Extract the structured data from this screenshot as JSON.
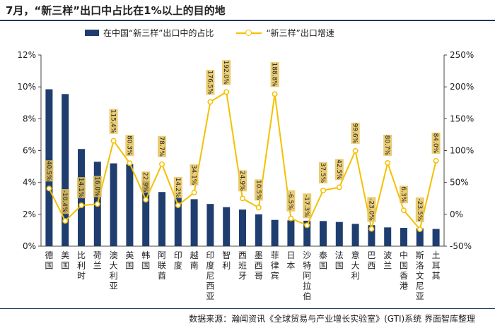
{
  "title": "7月，“新三样”出口中占比在1%以上的目的地",
  "source": "数据来源：瀚闻资讯《全球贸易与产业增长实验室》(GTI)系统   界面智库整理",
  "chart_data": {
    "type": "bar+line",
    "categories": [
      "德国",
      "美国",
      "比利时",
      "荷兰",
      "澳大利亚",
      "英国",
      "韩国",
      "阿联酋",
      "印度",
      "越南",
      "印度尼西亚",
      "智利",
      "西班牙",
      "墨西哥",
      "菲律宾",
      "日本",
      "沙特阿拉伯",
      "泰国",
      "法国",
      "意大利",
      "巴西",
      "波兰",
      "中国香港",
      "斯洛文尼亚",
      "土耳其"
    ],
    "series": [
      {
        "name": "在中国“新三样”出口中的占比",
        "type": "bar",
        "axis": "left",
        "color": "#1f3e6f",
        "values": [
          9.85,
          9.55,
          6.1,
          5.3,
          5.2,
          5.15,
          4.1,
          3.4,
          3.1,
          2.95,
          2.65,
          2.45,
          2.3,
          2.0,
          1.65,
          1.62,
          1.6,
          1.58,
          1.52,
          1.4,
          1.32,
          1.18,
          1.15,
          1.12,
          1.08
        ]
      },
      {
        "name": "“新三样”出口增速",
        "type": "line",
        "axis": "right",
        "color": "#f5c000",
        "values": [
          40.5,
          -10.4,
          14.1,
          16.0,
          115.4,
          80.3,
          22.9,
          78.7,
          14.2,
          34.1,
          176.5,
          192.0,
          24.9,
          10.5,
          188.8,
          -6.5,
          -17.3,
          37.5,
          42.5,
          99.6,
          -23.0,
          80.7,
          6.3,
          -23.5,
          84.0
        ],
        "labels": [
          "40.5%",
          "-10.4%",
          "14.1%",
          "16.0%",
          "115.4%",
          "80.3%",
          "22.9%",
          "78.7%",
          "14.2%",
          "34.1%",
          "176.5%",
          "192.0%",
          "24.9%",
          "10.5%",
          "188.8%",
          "-6.5%",
          "-17.3%",
          "37.5%",
          "42.5%",
          "99.6%",
          "-23.0%",
          "80.7%",
          "6.3%",
          "-23.5%",
          "84.0%"
        ]
      }
    ],
    "y_left": {
      "ticks": [
        "0%",
        "2%",
        "4%",
        "6%",
        "8%",
        "10%",
        "12%"
      ],
      "range": [
        0,
        12
      ]
    },
    "y_right": {
      "ticks": [
        "-50%",
        "0%",
        "50%",
        "100%",
        "150%",
        "200%",
        "250%"
      ],
      "range": [
        -50,
        250
      ]
    },
    "legend_position": "top"
  }
}
